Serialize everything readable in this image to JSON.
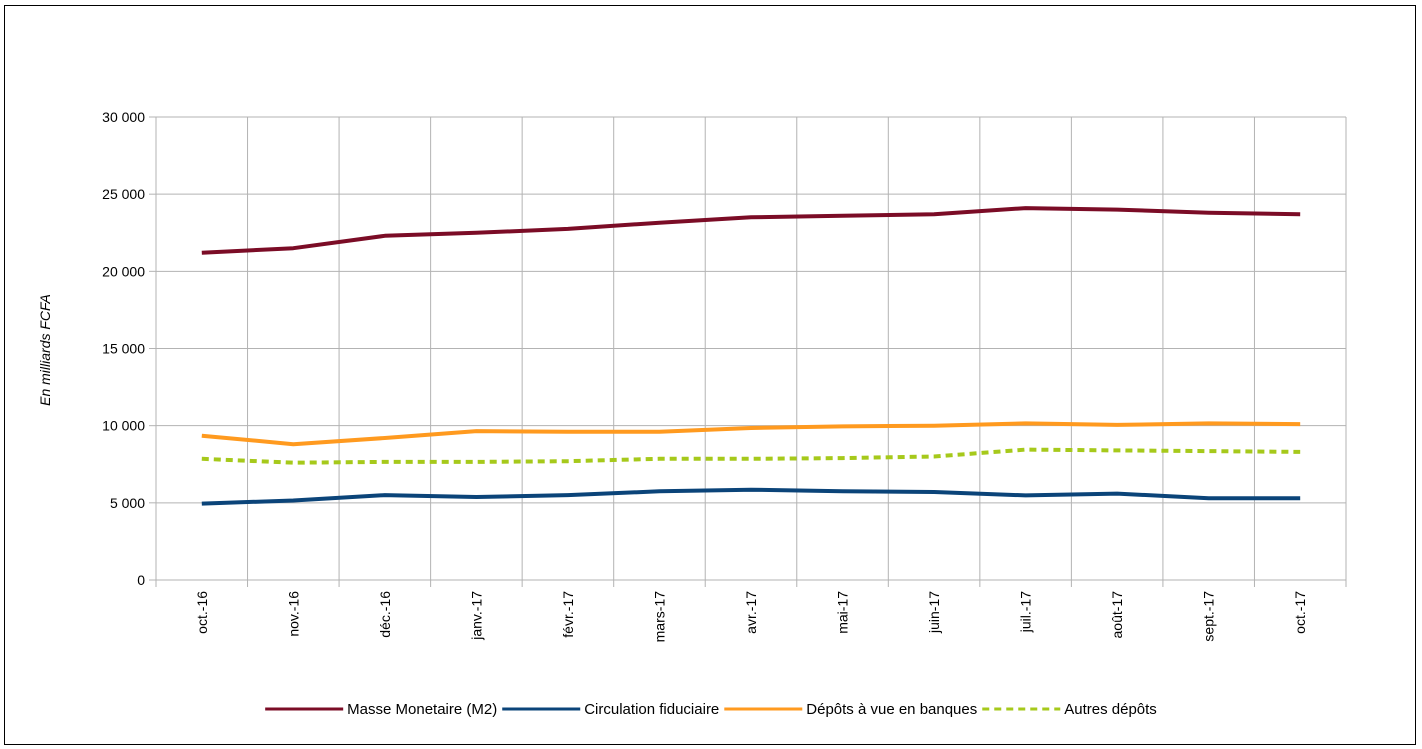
{
  "chart_data": {
    "type": "line",
    "title": "",
    "xlabel": "",
    "ylabel": "En milliards FCFA",
    "ylim": [
      0,
      30000
    ],
    "y_ticks": [
      0,
      5000,
      10000,
      15000,
      20000,
      25000,
      30000
    ],
    "y_tick_labels": [
      "0",
      "5 000",
      "10 000",
      "15 000",
      "20 000",
      "25 000",
      "30 000"
    ],
    "grid": true,
    "legend_position": "bottom",
    "categories": [
      "oct.-16",
      "nov.-16",
      "déc.-16",
      "janv.-17",
      "févr.-17",
      "mars-17",
      "avr.-17",
      "mai-17",
      "juin-17",
      "juil.-17",
      "août-17",
      "sept.-17",
      "oct.-17"
    ],
    "series": [
      {
        "name": "Masse Monetaire (M2)",
        "color": "#7b0c26",
        "dash": "solid",
        "values": [
          21200,
          21500,
          22300,
          22500,
          22750,
          23150,
          23500,
          23600,
          23700,
          24100,
          24000,
          23800,
          23700
        ]
      },
      {
        "name": "Circulation fiduciaire",
        "color": "#0b4479",
        "dash": "solid",
        "values": [
          4950,
          5150,
          5500,
          5380,
          5500,
          5750,
          5850,
          5750,
          5700,
          5480,
          5600,
          5300,
          5300
        ]
      },
      {
        "name": "Dépôts à vue en banques",
        "color": "#ff9a1f",
        "dash": "solid",
        "values": [
          9350,
          8800,
          9200,
          9650,
          9600,
          9600,
          9850,
          9950,
          10000,
          10150,
          10050,
          10150,
          10100
        ]
      },
      {
        "name": "Autres dépôts",
        "color": "#a6c91b",
        "dash": "dashed",
        "values": [
          7850,
          7600,
          7650,
          7650,
          7700,
          7850,
          7850,
          7900,
          8000,
          8450,
          8400,
          8350,
          8300
        ]
      }
    ]
  }
}
